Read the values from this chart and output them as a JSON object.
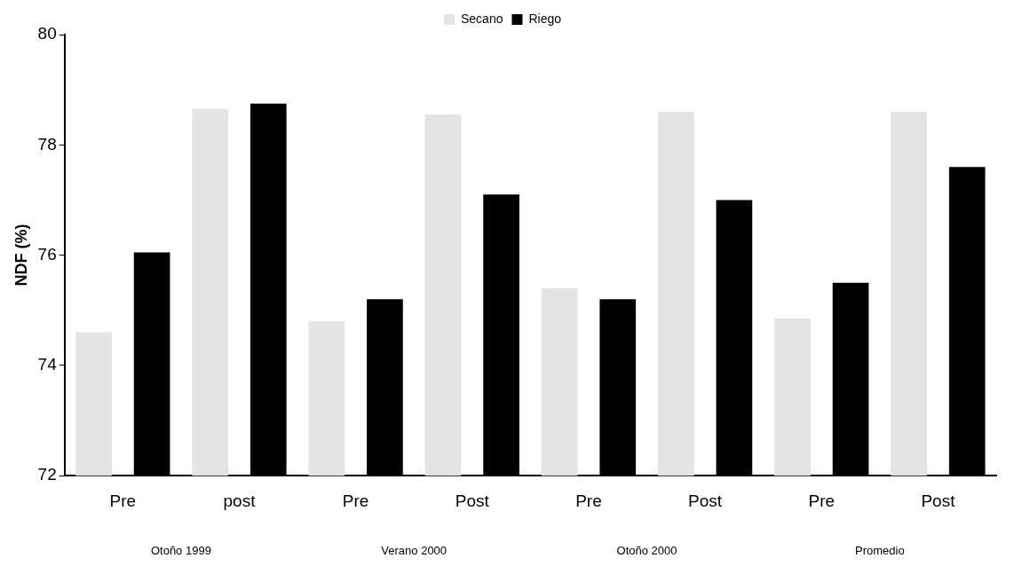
{
  "chart_data": {
    "type": "bar",
    "ylabel": "NDF (%)",
    "categories": [
      "Pre",
      "post",
      "Pre",
      "Post",
      "Pre",
      "Post",
      "Pre",
      "Post"
    ],
    "series": [
      {
        "name": "Secano",
        "color": "#e4e4e4",
        "values": [
          74.6,
          78.65,
          74.8,
          78.55,
          75.4,
          78.6,
          74.85,
          78.6
        ]
      },
      {
        "name": "Riego",
        "color": "#000000",
        "values": [
          76.05,
          78.75,
          75.2,
          77.1,
          75.2,
          77.0,
          75.5,
          77.6
        ]
      }
    ],
    "annotations": [
      "Otoño 1999",
      "Verano 2000",
      "Otoño 2000",
      "Promedio"
    ],
    "ylim": [
      72,
      80
    ],
    "yticks": [
      72,
      74,
      76,
      78,
      80
    ],
    "grid": false,
    "legend": "top"
  }
}
